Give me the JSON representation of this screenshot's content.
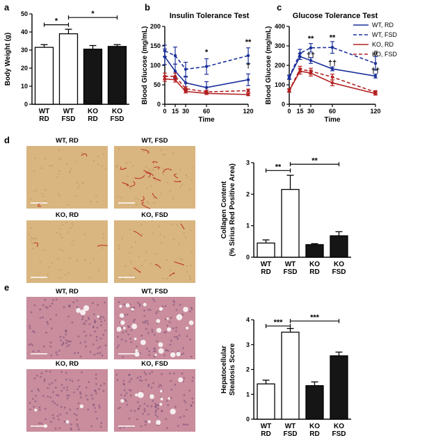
{
  "panel_letters": {
    "a": "a",
    "b": "b",
    "c": "c",
    "d": "d",
    "e": "e"
  },
  "colors": {
    "blue": "#1a2f9a",
    "red": "#b32020",
    "black": "#111111",
    "ko_bar": "#151515",
    "scale_bar": "#ffffff",
    "sirius_bg": "#d9b57f",
    "sirius_fibrosis": "#b92b24",
    "he_bg": "#c98d9d",
    "he_nuclei": "#7c4f79"
  },
  "micrographs": {
    "d": [
      {
        "label": "WT, RD",
        "stain": "sirius",
        "fibrosis": "low"
      },
      {
        "label": "WT, FSD",
        "stain": "sirius",
        "fibrosis": "high"
      },
      {
        "label": "KO, RD",
        "stain": "sirius",
        "fibrosis": "low"
      },
      {
        "label": "KO, FSD",
        "stain": "sirius",
        "fibrosis": "medium"
      }
    ],
    "e": [
      {
        "label": "WT, RD",
        "stain": "he",
        "steatosis": "low"
      },
      {
        "label": "WT, FSD",
        "stain": "he",
        "steatosis": "high"
      },
      {
        "label": "KO, RD",
        "stain": "he",
        "steatosis": "low"
      },
      {
        "label": "KO, FSD",
        "stain": "he",
        "steatosis": "medium"
      }
    ]
  },
  "chart_data": [
    {
      "id": "a",
      "type": "bar",
      "title": "",
      "ylabel": "Body Weight (g)",
      "ylim": [
        0,
        50
      ],
      "yticks": [
        0,
        10,
        20,
        30,
        40,
        50
      ],
      "categories": [
        "WT RD",
        "WT FSD",
        "KO RD",
        "KO FSD"
      ],
      "category_lines": [
        [
          "WT",
          "RD"
        ],
        [
          "WT",
          "FSD"
        ],
        [
          "KO",
          "RD"
        ],
        [
          "KO",
          "FSD"
        ]
      ],
      "values": [
        31.5,
        39,
        30.5,
        32
      ],
      "errors": [
        1.5,
        2.5,
        2,
        1
      ],
      "fills": [
        "white",
        "white",
        "black",
        "black"
      ],
      "significance": [
        {
          "from": 0,
          "to": 1,
          "y": 44,
          "label": "*"
        },
        {
          "from": 1,
          "to": 3,
          "y": 48,
          "label": "*"
        }
      ]
    },
    {
      "id": "b",
      "type": "line",
      "title": "Insulin Tolerance Test",
      "xlabel": "Time",
      "ylabel": "Blood Glucose (mg/mL)",
      "xlim": [
        0,
        120
      ],
      "ylim": [
        0,
        200
      ],
      "xticks": [
        0,
        15,
        30,
        60,
        120
      ],
      "yticks": [
        0,
        50,
        100,
        150,
        200
      ],
      "x": [
        0,
        15,
        30,
        60,
        120
      ],
      "series": [
        {
          "name": "WT, FSD",
          "color": "blue",
          "dash": true,
          "values": [
            137,
            125,
            90,
            97,
            125
          ],
          "errors": [
            15,
            22,
            18,
            20,
            20
          ]
        },
        {
          "name": "WT, RD",
          "color": "blue",
          "dash": false,
          "values": [
            122,
            85,
            55,
            43,
            63
          ],
          "errors": [
            20,
            18,
            15,
            15,
            15
          ]
        },
        {
          "name": "KO, FSD",
          "color": "red",
          "dash": true,
          "values": [
            72,
            72,
            40,
            32,
            35
          ],
          "errors": [
            8,
            8,
            5,
            4,
            4
          ]
        },
        {
          "name": "KO, RD",
          "color": "red",
          "dash": false,
          "values": [
            65,
            63,
            33,
            28,
            25
          ],
          "errors": [
            6,
            6,
            4,
            3,
            3
          ]
        }
      ],
      "annotations": [
        {
          "x": 60,
          "y": 128,
          "label": "*"
        },
        {
          "x": 120,
          "y": 154,
          "label": "**"
        },
        {
          "x": 120,
          "y": 93,
          "label": "†"
        }
      ]
    },
    {
      "id": "c",
      "type": "line",
      "title": "Glucose Tolerance Test",
      "xlabel": "Time",
      "ylabel": "Blood Glucose (mg/mL)",
      "xlim": [
        0,
        120
      ],
      "ylim": [
        0,
        400
      ],
      "xticks": [
        0,
        15,
        30,
        60,
        120
      ],
      "yticks": [
        0,
        100,
        200,
        300,
        400
      ],
      "x": [
        0,
        15,
        30,
        60,
        120
      ],
      "series": [
        {
          "name": "WT, RD",
          "color": "blue",
          "dash": false,
          "values": [
            138,
            245,
            225,
            182,
            145
          ],
          "errors": [
            10,
            15,
            15,
            10,
            10
          ]
        },
        {
          "name": "WT, FSD",
          "color": "blue",
          "dash": true,
          "values": [
            140,
            262,
            290,
            292,
            210
          ],
          "errors": [
            10,
            20,
            22,
            30,
            35
          ]
        },
        {
          "name": "KO, RD",
          "color": "red",
          "dash": false,
          "values": [
            70,
            170,
            160,
            110,
            55
          ],
          "errors": [
            8,
            15,
            15,
            15,
            8
          ]
        },
        {
          "name": "KO, FSD",
          "color": "red",
          "dash": true,
          "values": [
            72,
            180,
            170,
            140,
            62
          ],
          "errors": [
            8,
            15,
            15,
            15,
            8
          ]
        }
      ],
      "annotations": [
        {
          "x": 30,
          "y": 325,
          "label": "**"
        },
        {
          "x": 60,
          "y": 330,
          "label": "**"
        },
        {
          "x": 30,
          "y": 240,
          "label": "††"
        },
        {
          "x": 60,
          "y": 200,
          "label": "††"
        },
        {
          "x": 120,
          "y": 250,
          "label": "#"
        },
        {
          "x": 120,
          "y": 160,
          "label": "††"
        }
      ],
      "legend_position": "right"
    },
    {
      "id": "d",
      "type": "bar",
      "title": "",
      "ylabel_lines": [
        "Collagen Content",
        "(% Sirius Red  Positive Area)"
      ],
      "ylim": [
        0,
        3
      ],
      "yticks": [
        0,
        1,
        2,
        3
      ],
      "categories": [
        "WT RD",
        "WT FSD",
        "KO RD",
        "KO FSD"
      ],
      "category_lines": [
        [
          "WT",
          "RD"
        ],
        [
          "WT",
          "FSD"
        ],
        [
          "KO",
          "RD"
        ],
        [
          "KO",
          "FSD"
        ]
      ],
      "values": [
        0.45,
        2.15,
        0.4,
        0.68
      ],
      "errors": [
        0.1,
        0.45,
        0.03,
        0.13
      ],
      "fills": [
        "white",
        "white",
        "black",
        "black"
      ],
      "significance": [
        {
          "from": 0,
          "to": 1,
          "y": 2.75,
          "label": "**"
        },
        {
          "from": 1,
          "to": 3,
          "y": 2.95,
          "label": "**"
        }
      ]
    },
    {
      "id": "e",
      "type": "bar",
      "title": "",
      "ylabel_lines": [
        "Hepatocellular",
        "Steatosis Score"
      ],
      "ylim": [
        0,
        4
      ],
      "yticks": [
        0,
        1,
        2,
        3,
        4
      ],
      "categories": [
        "WT RD",
        "WT FSD",
        "KO RD",
        "KO FSD"
      ],
      "category_lines": [
        [
          "WT",
          "RD"
        ],
        [
          "WT",
          "FSD"
        ],
        [
          "KO",
          "RD"
        ],
        [
          "KO",
          "FSD"
        ]
      ],
      "values": [
        1.42,
        3.5,
        1.35,
        2.55
      ],
      "errors": [
        0.15,
        0.15,
        0.15,
        0.15
      ],
      "fills": [
        "white",
        "white",
        "black",
        "black"
      ],
      "significance": [
        {
          "from": 0,
          "to": 1,
          "y": 3.75,
          "label": "***"
        },
        {
          "from": 1,
          "to": 3,
          "y": 3.95,
          "label": "***"
        }
      ]
    }
  ]
}
